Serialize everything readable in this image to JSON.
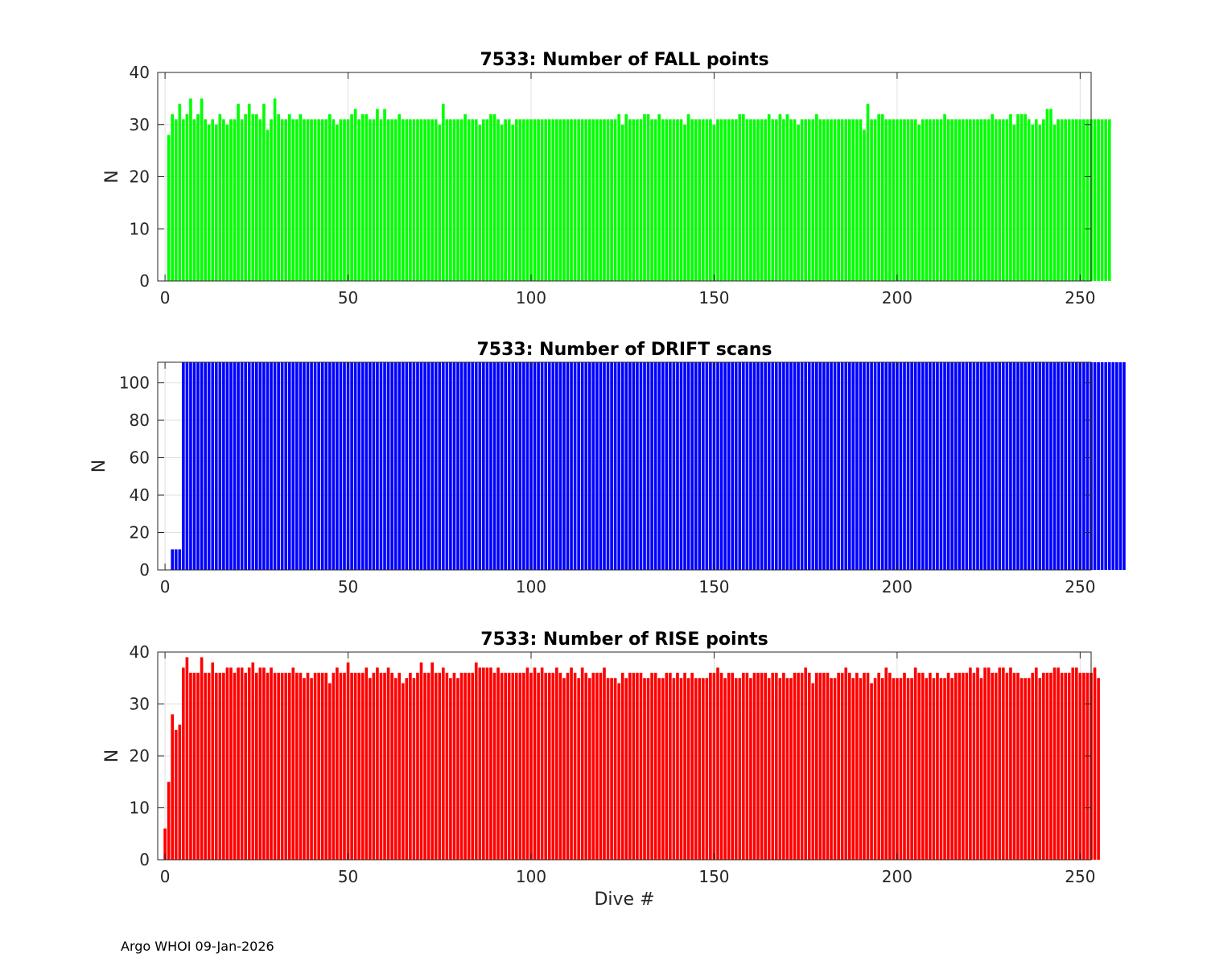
{
  "footer": "Argo WHOI 09-Jan-2026",
  "chart_data": [
    {
      "type": "bar",
      "title": "7533: Number of FALL points",
      "xlabel": "",
      "ylabel": "N",
      "color": "#00ff00",
      "xlim": [
        -2,
        253
      ],
      "ylim": [
        0,
        40
      ],
      "xticks": [
        0,
        50,
        100,
        150,
        200,
        250
      ],
      "yticks": [
        0,
        10,
        20,
        30,
        40
      ],
      "grid": true,
      "x_start": 1,
      "values": [
        28,
        32,
        31,
        34,
        31,
        32,
        35,
        31,
        32,
        35,
        31,
        30,
        31,
        30,
        32,
        31,
        30,
        31,
        31,
        34,
        31,
        32,
        34,
        32,
        32,
        31,
        34,
        29,
        31,
        35,
        32,
        31,
        31,
        32,
        31,
        31,
        32,
        31,
        31,
        31,
        31,
        31,
        31,
        31,
        32,
        31,
        30,
        31,
        31,
        31,
        32,
        33,
        31,
        32,
        32,
        31,
        31,
        33,
        31,
        33,
        31,
        31,
        31,
        32,
        31,
        31,
        31,
        31,
        31,
        31,
        31,
        31,
        31,
        31,
        30,
        34,
        31,
        31,
        31,
        31,
        31,
        32,
        31,
        31,
        31,
        30,
        31,
        31,
        32,
        32,
        31,
        30,
        31,
        31,
        30,
        31,
        31,
        31,
        31,
        31,
        31,
        31,
        31,
        31,
        31,
        31,
        31,
        31,
        31,
        31,
        31,
        31,
        31,
        31,
        31,
        31,
        31,
        31,
        31,
        31,
        31,
        31,
        31,
        32,
        30,
        32,
        31,
        31,
        31,
        31,
        32,
        32,
        31,
        31,
        32,
        31,
        31,
        31,
        31,
        31,
        31,
        30,
        32,
        31,
        31,
        31,
        31,
        31,
        31,
        30,
        31,
        31,
        31,
        31,
        31,
        31,
        32,
        32,
        31,
        31,
        31,
        31,
        31,
        31,
        32,
        31,
        31,
        32,
        31,
        32,
        31,
        31,
        30,
        31,
        31,
        31,
        31,
        32,
        31,
        31,
        31,
        31,
        31,
        31,
        31,
        31,
        31,
        31,
        31,
        31,
        29,
        34,
        31,
        31,
        32,
        32,
        31,
        31,
        31,
        31,
        31,
        31,
        31,
        31,
        31,
        30,
        31,
        31,
        31,
        31,
        31,
        31,
        32,
        31,
        31,
        31,
        31,
        31,
        31,
        31,
        31,
        31,
        31,
        31,
        31,
        32,
        31,
        31,
        31,
        31,
        32,
        30,
        32,
        32,
        32,
        31,
        30,
        31,
        30,
        31,
        33,
        33,
        30,
        31,
        31,
        31,
        31,
        31,
        31,
        31,
        31,
        31,
        31,
        31,
        31,
        31,
        31,
        31
      ]
    },
    {
      "type": "bar",
      "title": "7533: Number of DRIFT scans",
      "xlabel": "",
      "ylabel": "N",
      "color": "#0000ff",
      "xlim": [
        -2,
        253
      ],
      "ylim": [
        0,
        111
      ],
      "xticks": [
        0,
        50,
        100,
        150,
        200,
        250
      ],
      "yticks": [
        0,
        20,
        40,
        60,
        80,
        100
      ],
      "grid": true,
      "x_start": 1,
      "values": [
        0,
        11,
        11,
        11,
        111,
        111,
        111,
        111,
        111,
        111,
        111,
        111,
        111,
        111,
        111,
        111,
        111,
        111,
        111,
        111,
        111,
        111,
        111,
        111,
        111,
        111,
        111,
        111,
        111,
        111,
        111,
        111,
        111,
        111,
        111,
        111,
        111,
        111,
        111,
        111,
        111,
        111,
        111,
        111,
        111,
        111,
        111,
        111,
        111,
        111,
        111,
        111,
        111,
        111,
        111,
        111,
        111,
        111,
        111,
        111,
        111,
        111,
        111,
        111,
        111,
        111,
        111,
        111,
        111,
        111,
        111,
        111,
        111,
        111,
        111,
        111,
        111,
        111,
        111,
        111,
        111,
        111,
        111,
        111,
        111,
        111,
        111,
        111,
        111,
        111,
        111,
        111,
        111,
        111,
        111,
        111,
        111,
        111,
        111,
        111,
        111,
        111,
        111,
        111,
        111,
        111,
        111,
        111,
        111,
        111,
        111,
        111,
        111,
        111,
        111,
        111,
        111,
        111,
        111,
        111,
        111,
        111,
        111,
        111,
        111,
        111,
        111,
        111,
        111,
        111,
        111,
        111,
        111,
        111,
        111,
        111,
        111,
        111,
        111,
        111,
        111,
        111,
        111,
        111,
        111,
        111,
        111,
        111,
        111,
        111,
        111,
        111,
        111,
        111,
        111,
        111,
        111,
        111,
        111,
        111,
        111,
        111,
        111,
        111,
        111,
        111,
        111,
        111,
        111,
        111,
        111,
        111,
        111,
        111,
        111,
        111,
        111,
        111,
        111,
        111,
        111,
        111,
        111,
        111,
        111,
        111,
        111,
        111,
        111,
        111,
        111,
        111,
        111,
        111,
        111,
        111,
        111,
        111,
        111,
        111,
        111,
        111,
        111,
        111,
        111,
        111,
        111,
        111,
        111,
        111,
        111,
        111,
        111,
        111,
        111,
        111,
        111,
        111,
        111,
        111,
        111,
        111,
        111,
        111,
        111,
        111,
        111,
        111,
        111,
        111,
        111,
        111,
        111,
        111,
        111,
        111,
        111,
        111,
        111,
        111,
        111,
        111,
        111,
        111,
        111,
        111,
        111,
        111,
        111,
        111,
        111,
        111,
        111,
        111,
        111,
        111,
        111,
        111,
        111,
        111,
        111,
        111
      ]
    },
    {
      "type": "bar",
      "title": "7533: Number of RISE points",
      "xlabel": "Dive #",
      "ylabel": "N",
      "color": "#ff0000",
      "xlim": [
        -2,
        253
      ],
      "ylim": [
        0,
        40
      ],
      "xticks": [
        0,
        50,
        100,
        150,
        200,
        250
      ],
      "yticks": [
        0,
        10,
        20,
        30,
        40
      ],
      "grid": true,
      "x_start": 0,
      "values": [
        6,
        15,
        28,
        25,
        26,
        37,
        39,
        36,
        36,
        36,
        39,
        36,
        36,
        38,
        36,
        36,
        36,
        37,
        37,
        36,
        37,
        37,
        36,
        37,
        38,
        36,
        37,
        37,
        36,
        37,
        36,
        36,
        36,
        36,
        36,
        37,
        36,
        36,
        35,
        36,
        35,
        36,
        36,
        36,
        36,
        34,
        36,
        37,
        36,
        36,
        38,
        36,
        36,
        36,
        36,
        37,
        35,
        36,
        37,
        36,
        36,
        37,
        36,
        35,
        36,
        34,
        35,
        36,
        35,
        36,
        38,
        36,
        36,
        38,
        36,
        36,
        37,
        36,
        35,
        36,
        35,
        36,
        36,
        36,
        36,
        38,
        37,
        37,
        37,
        37,
        36,
        37,
        36,
        36,
        36,
        36,
        36,
        36,
        36,
        37,
        36,
        37,
        36,
        37,
        36,
        36,
        36,
        37,
        36,
        35,
        36,
        37,
        36,
        35,
        37,
        36,
        35,
        36,
        36,
        36,
        37,
        35,
        35,
        35,
        34,
        36,
        35,
        36,
        36,
        36,
        36,
        35,
        35,
        36,
        36,
        35,
        35,
        36,
        36,
        35,
        36,
        35,
        36,
        35,
        36,
        35,
        35,
        35,
        35,
        36,
        36,
        37,
        36,
        35,
        36,
        36,
        35,
        35,
        36,
        36,
        35,
        36,
        36,
        36,
        36,
        35,
        36,
        36,
        35,
        36,
        35,
        35,
        36,
        36,
        36,
        37,
        36,
        34,
        36,
        36,
        36,
        36,
        35,
        35,
        36,
        36,
        37,
        36,
        35,
        36,
        35,
        36,
        36,
        34,
        35,
        36,
        35,
        37,
        36,
        35,
        35,
        35,
        36,
        35,
        35,
        37,
        36,
        36,
        35,
        36,
        35,
        36,
        35,
        35,
        36,
        35,
        36,
        36,
        36,
        36,
        37,
        36,
        37,
        35,
        37,
        37,
        36,
        36,
        37,
        37,
        36,
        37,
        36,
        36,
        35,
        35,
        35,
        36,
        37,
        35,
        36,
        36,
        36,
        37,
        37,
        36,
        36,
        36,
        37,
        37,
        36,
        36,
        36,
        36,
        37,
        35
      ]
    }
  ]
}
